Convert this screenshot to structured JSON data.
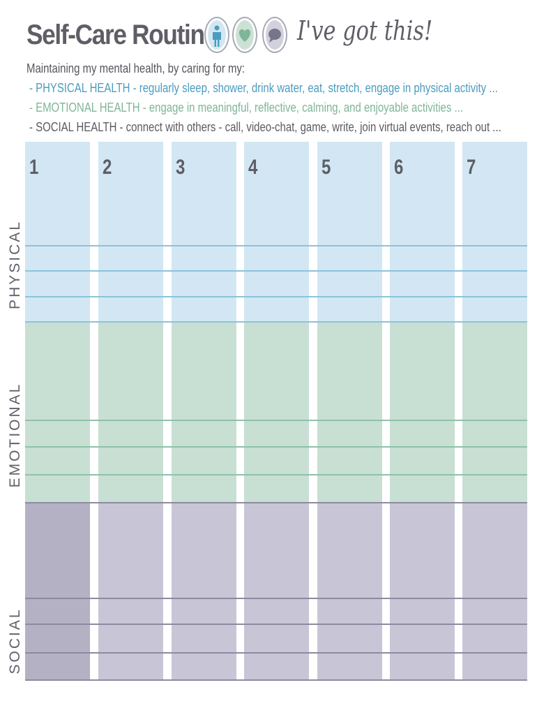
{
  "header": {
    "title": "Self-Care Routine",
    "tagline": "I've got this!",
    "icons": [
      "person-icon",
      "heart-icon",
      "speech-bubble-icon"
    ],
    "colors": {
      "physical": "#d2e7f3",
      "emotional": "#c8dfd4",
      "social": "#c8c6d6",
      "text": "#5e5e66"
    }
  },
  "intro": "Maintaining my mental health, by caring for my:",
  "bullets": [
    "- PHYSICAL HEALTH - regularly sleep, shower, drink water, eat, stretch, engage in physical activity ...",
    "- EMOTIONAL HEALTH  - engage in meaningful, reflective, calming, and enjoyable activities ...",
    "- SOCIAL HEALTH - connect with others - call, video-chat, game, write, join virtual events, reach out ..."
  ],
  "sections": [
    "PHYSICAL",
    "EMOTIONAL",
    "SOCIAL"
  ],
  "days": [
    "1",
    "2",
    "3",
    "4",
    "5",
    "6",
    "7"
  ]
}
